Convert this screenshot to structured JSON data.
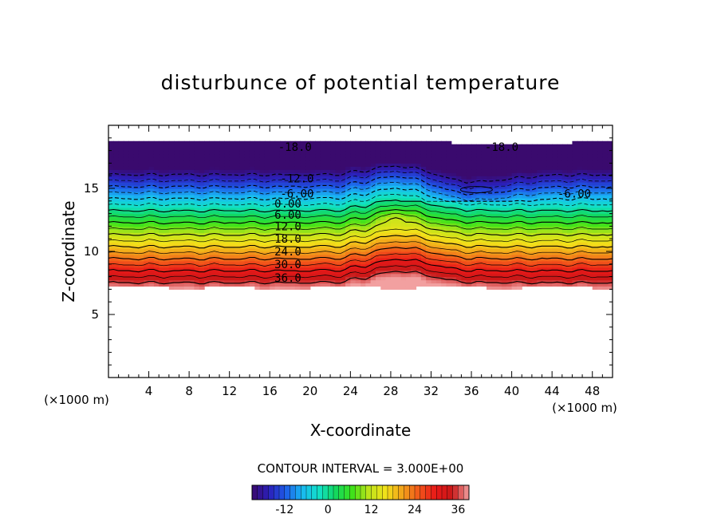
{
  "chart_data": {
    "type": "heatmap",
    "title": "disturbunce of potential temperature",
    "xlabel": "X-coordinate",
    "ylabel": "Z-coordinate",
    "x_unit": "(×1000 m)",
    "z_unit": "(×1000 m)",
    "xlim": [
      0,
      50
    ],
    "ylim": [
      0,
      20
    ],
    "x_ticks": [
      "4",
      "8",
      "12",
      "16",
      "20",
      "24",
      "28",
      "32",
      "36",
      "40",
      "44",
      "48"
    ],
    "y_ticks": [
      "5",
      "10",
      "15"
    ],
    "contour_interval_label": "CONTOUR INTERVAL = 3.000E+00",
    "colorbar": {
      "min": -21,
      "max": 39,
      "ticks": [
        "-12",
        "0",
        "12",
        "24",
        "36"
      ],
      "colors": [
        "#3a0a6e",
        "#2b1fb8",
        "#1e5be8",
        "#19b8f2",
        "#12e0c8",
        "#12d860",
        "#3ee21a",
        "#bde41a",
        "#f2e21a",
        "#f2a21a",
        "#f2581a",
        "#e81818",
        "#c81818",
        "#f2a0a0"
      ]
    },
    "contour_labels": [
      {
        "text": "-18.0",
        "x": 18.5,
        "z": 18.3
      },
      {
        "text": "-18.0",
        "x": 39.0,
        "z": 18.3
      },
      {
        "text": "-12.0",
        "x": 18.7,
        "z": 15.8
      },
      {
        "text": "-6.00",
        "x": 18.7,
        "z": 14.6
      },
      {
        "text": "-6.00",
        "x": 46.2,
        "z": 14.6
      },
      {
        "text": "0.00",
        "x": 17.8,
        "z": 13.8
      },
      {
        "text": "6.00",
        "x": 17.8,
        "z": 12.9
      },
      {
        "text": "12.0",
        "x": 17.8,
        "z": 12.0
      },
      {
        "text": "18.0",
        "x": 17.8,
        "z": 11.0
      },
      {
        "text": "24.0",
        "x": 17.8,
        "z": 10.0
      },
      {
        "text": "30.0",
        "x": 17.8,
        "z": 9.0
      },
      {
        "text": "36.0",
        "x": 17.8,
        "z": 7.9
      }
    ]
  }
}
